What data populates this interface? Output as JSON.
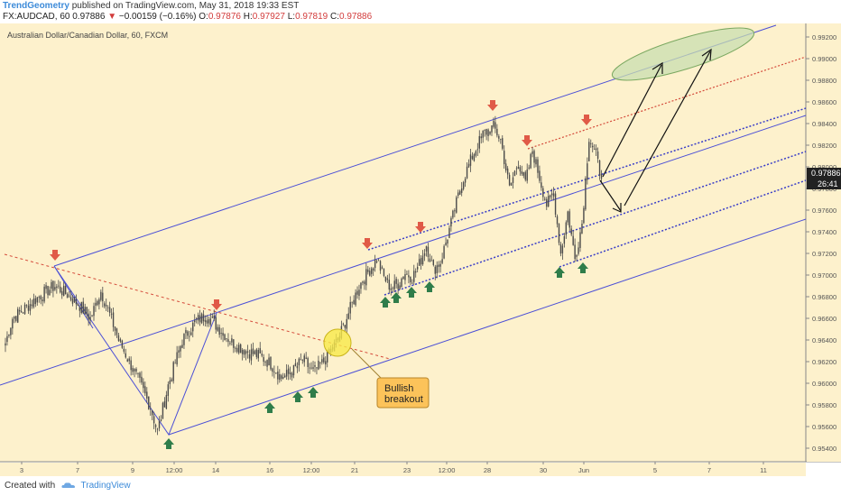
{
  "header": {
    "author": "TrendGeometry",
    "published_text": "published on TradingView.com, May 31, 2018 19:33 EST",
    "symbol": "FX:AUDCAD, 60",
    "last": "0.97886",
    "change": "−0.00159 (−0.16%)",
    "o_label": "O:",
    "o_value": "0.97876",
    "h_label": "H:",
    "h_value": "0.97927",
    "l_label": "L:",
    "l_value": "0.97819",
    "c_label": "C:",
    "c_value": "0.97886"
  },
  "chart_title": "Australian Dollar/Canadian Dollar, 60, FXCM",
  "annotation": {
    "line1": "Bullish",
    "line2": "breakout"
  },
  "price_tag": "0.97886",
  "countdown_tag": "26:41",
  "footer": {
    "created_with": "Created with",
    "brand": "TradingView"
  },
  "colors": {
    "background": "#fdf1cc",
    "candles": "#4a4a4a",
    "channel": "#4b4fd6",
    "dotted_red": "#d44a3a",
    "arrow_red": "#e05a47",
    "arrow_green": "#2f7d4a",
    "callout": "#fcc35a",
    "target_ellipse": "#c8ddb0"
  },
  "chart_data": {
    "type": "candlestick",
    "title": "Australian Dollar/Canadian Dollar, 60, FXCM",
    "y_range": [
      0.953,
      0.993
    ],
    "y_ticks": [
      "0.99200",
      "0.99000",
      "0.98800",
      "0.98600",
      "0.98400",
      "0.98200",
      "0.98000",
      "0.97800",
      "0.97600",
      "0.97400",
      "0.97200",
      "0.97000",
      "0.96800",
      "0.96600",
      "0.96400",
      "0.96200",
      "0.96000",
      "0.95800",
      "0.95600",
      "0.95400"
    ],
    "x_ticks": [
      "3",
      "7",
      "9",
      "12:00",
      "14",
      "16",
      "12:00",
      "21",
      "23",
      "12:00",
      "28",
      "30",
      "Jun",
      "5",
      "7",
      "11"
    ],
    "price_path": [
      {
        "i": 0,
        "y": 0.9637
      },
      {
        "i": 4,
        "y": 0.966
      },
      {
        "i": 10,
        "y": 0.9668
      },
      {
        "i": 16,
        "y": 0.9676
      },
      {
        "i": 22,
        "y": 0.9684
      },
      {
        "i": 28,
        "y": 0.969
      },
      {
        "i": 35,
        "y": 0.9682
      },
      {
        "i": 42,
        "y": 0.9672
      },
      {
        "i": 48,
        "y": 0.966
      },
      {
        "i": 54,
        "y": 0.9685
      },
      {
        "i": 58,
        "y": 0.9668
      },
      {
        "i": 64,
        "y": 0.964
      },
      {
        "i": 70,
        "y": 0.962
      },
      {
        "i": 76,
        "y": 0.96
      },
      {
        "i": 82,
        "y": 0.9578
      },
      {
        "i": 86,
        "y": 0.9555
      },
      {
        "i": 92,
        "y": 0.9598
      },
      {
        "i": 100,
        "y": 0.964
      },
      {
        "i": 108,
        "y": 0.9658
      },
      {
        "i": 114,
        "y": 0.9663
      },
      {
        "i": 120,
        "y": 0.9652
      },
      {
        "i": 128,
        "y": 0.9638
      },
      {
        "i": 136,
        "y": 0.963
      },
      {
        "i": 144,
        "y": 0.9625
      },
      {
        "i": 150,
        "y": 0.9618
      },
      {
        "i": 156,
        "y": 0.9605
      },
      {
        "i": 162,
        "y": 0.961
      },
      {
        "i": 168,
        "y": 0.9622
      },
      {
        "i": 174,
        "y": 0.961
      },
      {
        "i": 180,
        "y": 0.962
      },
      {
        "i": 188,
        "y": 0.964
      },
      {
        "i": 194,
        "y": 0.9665
      },
      {
        "i": 200,
        "y": 0.969
      },
      {
        "i": 206,
        "y": 0.9705
      },
      {
        "i": 210,
        "y": 0.9715
      },
      {
        "i": 214,
        "y": 0.9698
      },
      {
        "i": 218,
        "y": 0.9688
      },
      {
        "i": 222,
        "y": 0.9692
      },
      {
        "i": 226,
        "y": 0.9702
      },
      {
        "i": 230,
        "y": 0.9698
      },
      {
        "i": 234,
        "y": 0.971
      },
      {
        "i": 238,
        "y": 0.9728
      },
      {
        "i": 242,
        "y": 0.9705
      },
      {
        "i": 246,
        "y": 0.9712
      },
      {
        "i": 252,
        "y": 0.9748
      },
      {
        "i": 258,
        "y": 0.9785
      },
      {
        "i": 264,
        "y": 0.981
      },
      {
        "i": 270,
        "y": 0.983
      },
      {
        "i": 276,
        "y": 0.9837
      },
      {
        "i": 280,
        "y": 0.9825
      },
      {
        "i": 285,
        "y": 0.978
      },
      {
        "i": 290,
        "y": 0.9805
      },
      {
        "i": 294,
        "y": 0.9785
      },
      {
        "i": 298,
        "y": 0.9815
      },
      {
        "i": 302,
        "y": 0.979
      },
      {
        "i": 306,
        "y": 0.9765
      },
      {
        "i": 310,
        "y": 0.9775
      },
      {
        "i": 314,
        "y": 0.972
      },
      {
        "i": 318,
        "y": 0.9758
      },
      {
        "i": 322,
        "y": 0.9715
      },
      {
        "i": 326,
        "y": 0.9748
      },
      {
        "i": 330,
        "y": 0.9828
      },
      {
        "i": 334,
        "y": 0.981
      },
      {
        "i": 337,
        "y": 0.9789
      }
    ]
  }
}
